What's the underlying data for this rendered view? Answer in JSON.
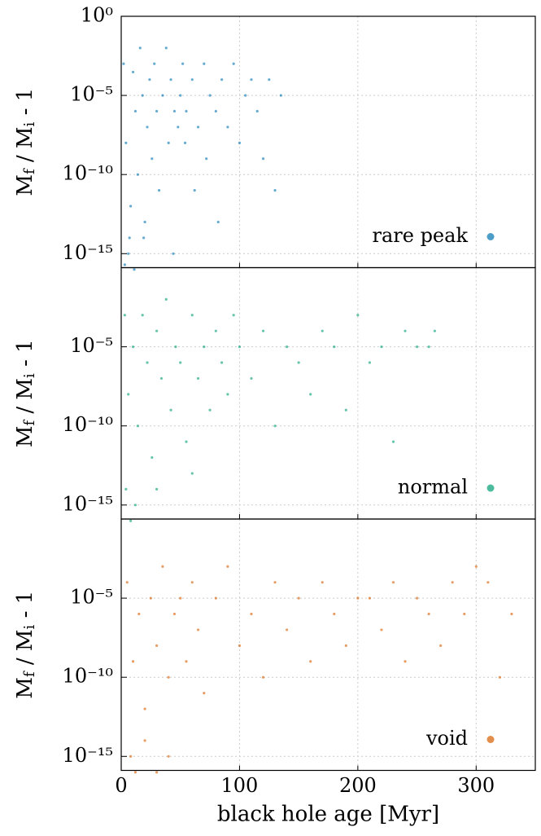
{
  "chart_data": [
    {
      "type": "scatter",
      "ylabel": [
        "M",
        "f",
        " / M",
        "i",
        " - 1"
      ],
      "log_y": true,
      "grid": true,
      "legend": "lower right",
      "xlim": [
        0,
        350
      ],
      "xticks": [
        0,
        100,
        200,
        300
      ],
      "ylim": [
        1.3e-16,
        1
      ],
      "yticks": [
        {
          "value": 1e-15,
          "label": "10⁻¹⁵"
        },
        {
          "value": 1e-10,
          "label": "10⁻¹⁰"
        },
        {
          "value": 1e-05,
          "label": "10⁻⁵"
        },
        {
          "value": 1,
          "label": "10⁰"
        }
      ],
      "series": [
        {
          "name": "rare peak",
          "color": "#0173b2",
          "x": [
            2,
            4,
            6,
            8,
            10,
            12,
            14,
            16,
            18,
            20,
            22,
            24,
            26,
            28,
            30,
            32,
            35,
            38,
            40,
            42,
            45,
            48,
            50,
            52,
            54,
            55,
            60,
            62,
            65,
            70,
            72,
            75,
            80,
            82,
            85,
            90,
            95,
            100,
            105,
            110,
            115,
            120,
            125,
            130,
            135,
            3,
            7,
            11,
            19,
            44
          ],
          "y": [
            0.001,
            1e-08,
            1e-15,
            1e-12,
            0.0003,
            1e-06,
            1e-10,
            0.01,
            1e-05,
            1e-13,
            1e-07,
            0.0001,
            1e-09,
            0.001,
            1e-06,
            1e-11,
            1e-05,
            0.01,
            1e-08,
            0.0001,
            1e-06,
            1e-07,
            1e-05,
            0.001,
            1e-08,
            1e-06,
            0.0001,
            1e-11,
            1e-07,
            0.001,
            1e-09,
            1e-05,
            1e-06,
            1e-13,
            0.0001,
            1e-07,
            0.001,
            1e-08,
            1e-05,
            0.0001,
            1e-06,
            1e-09,
            0.0001,
            1e-11,
            1e-05,
            2e-16,
            1e-14,
            1e-16,
            1e-14,
            1e-15
          ]
        }
      ]
    },
    {
      "type": "scatter",
      "ylabel": [
        "M",
        "f",
        " / M",
        "i",
        " - 1"
      ],
      "log_y": true,
      "grid": true,
      "legend": "lower right",
      "xlim": [
        0,
        350
      ],
      "xticks": [
        0,
        100,
        200,
        300
      ],
      "ylim": [
        1.3e-16,
        1
      ],
      "yticks": [
        {
          "value": 1e-15,
          "label": "10⁻¹⁵"
        },
        {
          "value": 1e-10,
          "label": "10⁻¹⁰"
        },
        {
          "value": 1e-05,
          "label": "10⁻⁵"
        }
      ],
      "series": [
        {
          "name": "normal",
          "color": "#029e73",
          "x": [
            3,
            6,
            10,
            14,
            18,
            22,
            26,
            30,
            34,
            38,
            42,
            46,
            50,
            55,
            60,
            65,
            70,
            75,
            80,
            85,
            90,
            95,
            100,
            110,
            120,
            130,
            140,
            150,
            160,
            170,
            180,
            190,
            200,
            210,
            220,
            230,
            240,
            250,
            260,
            265,
            4,
            8,
            12,
            30,
            60
          ],
          "y": [
            0.001,
            1e-08,
            1e-05,
            1e-10,
            0.001,
            1e-06,
            1e-12,
            0.0001,
            1e-07,
            0.01,
            1e-09,
            1e-05,
            1e-06,
            1e-11,
            0.001,
            1e-07,
            1e-05,
            1e-09,
            0.0001,
            1e-06,
            1e-08,
            0.001,
            1e-05,
            1e-07,
            0.0001,
            1e-10,
            1e-05,
            1e-06,
            1e-08,
            0.0001,
            1e-05,
            1e-09,
            0.001,
            1e-06,
            1e-05,
            1e-11,
            0.0001,
            1e-05,
            1e-05,
            0.0001,
            1e-14,
            1e-16,
            1e-15,
            1e-14,
            1e-13
          ]
        }
      ]
    },
    {
      "type": "scatter",
      "ylabel": [
        "M",
        "f",
        " / M",
        "i",
        " - 1"
      ],
      "log_y": true,
      "grid": true,
      "legend": "lower right",
      "xlim": [
        0,
        350
      ],
      "xticks": [
        0,
        100,
        200,
        300
      ],
      "ylim": [
        1.3e-16,
        1
      ],
      "yticks": [
        {
          "value": 1e-15,
          "label": "10⁻¹⁵"
        },
        {
          "value": 1e-10,
          "label": "10⁻¹⁰"
        },
        {
          "value": 1e-05,
          "label": "10⁻⁵"
        }
      ],
      "xlabel": "black hole age [Myr]",
      "series": [
        {
          "name": "void",
          "color": "#d55e00",
          "x": [
            5,
            10,
            15,
            20,
            25,
            30,
            35,
            40,
            45,
            50,
            55,
            60,
            65,
            70,
            80,
            90,
            100,
            110,
            120,
            130,
            140,
            150,
            160,
            170,
            180,
            190,
            200,
            210,
            220,
            230,
            240,
            250,
            260,
            270,
            280,
            290,
            300,
            310,
            320,
            330,
            8,
            20,
            30,
            12,
            40
          ],
          "y": [
            0.0001,
            1e-09,
            1e-06,
            1e-12,
            1e-05,
            1e-08,
            0.001,
            1e-10,
            1e-06,
            1e-05,
            1e-09,
            0.0001,
            1e-07,
            1e-11,
            1e-05,
            0.001,
            1e-08,
            1e-06,
            1e-10,
            0.0001,
            1e-07,
            1e-05,
            1e-09,
            0.0001,
            1e-06,
            1e-08,
            1e-05,
            1e-05,
            1e-07,
            0.0001,
            1e-09,
            1e-05,
            1e-06,
            1e-08,
            0.0001,
            1e-06,
            0.001,
            0.0001,
            1e-10,
            1e-06,
            1e-15,
            1e-14,
            1e-16,
            1e-16,
            1e-15
          ]
        }
      ]
    }
  ]
}
